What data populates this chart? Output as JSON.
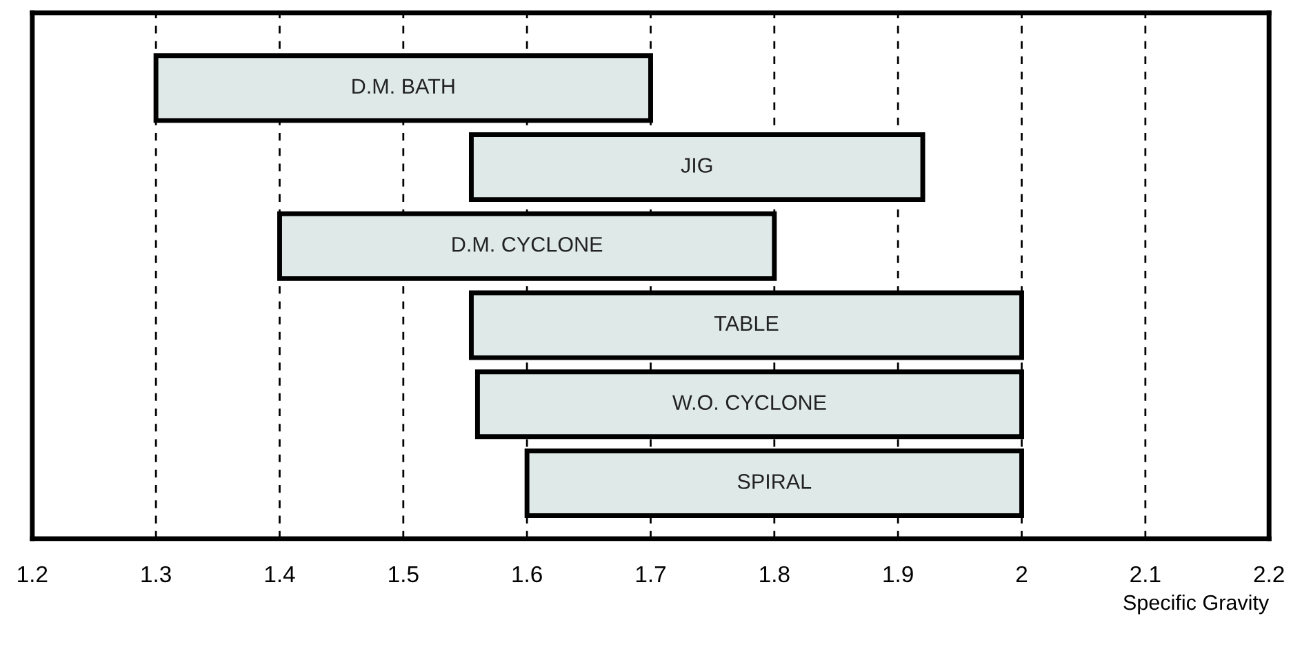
{
  "chart_data": {
    "type": "bar",
    "orientation": "horizontal",
    "categories": [
      "D.M. BATH",
      "JIG",
      "D.M. CYCLONE",
      "TABLE",
      "W.O. CYCLONE",
      "SPIRAL"
    ],
    "base": [
      1.3,
      1.555,
      1.4,
      1.555,
      1.56,
      1.6
    ],
    "values": [
      0.4,
      0.365,
      0.4,
      0.445,
      0.44,
      0.4
    ],
    "color": "#dfeae8",
    "xlabel": "Specific Gravity",
    "xlim": [
      1.2,
      2.2
    ],
    "xticks": [
      1.2,
      1.3,
      1.4,
      1.5,
      1.6,
      1.7,
      1.8,
      1.9,
      2,
      2.1,
      2.2
    ],
    "grid": "x",
    "tick_labels": "x"
  }
}
